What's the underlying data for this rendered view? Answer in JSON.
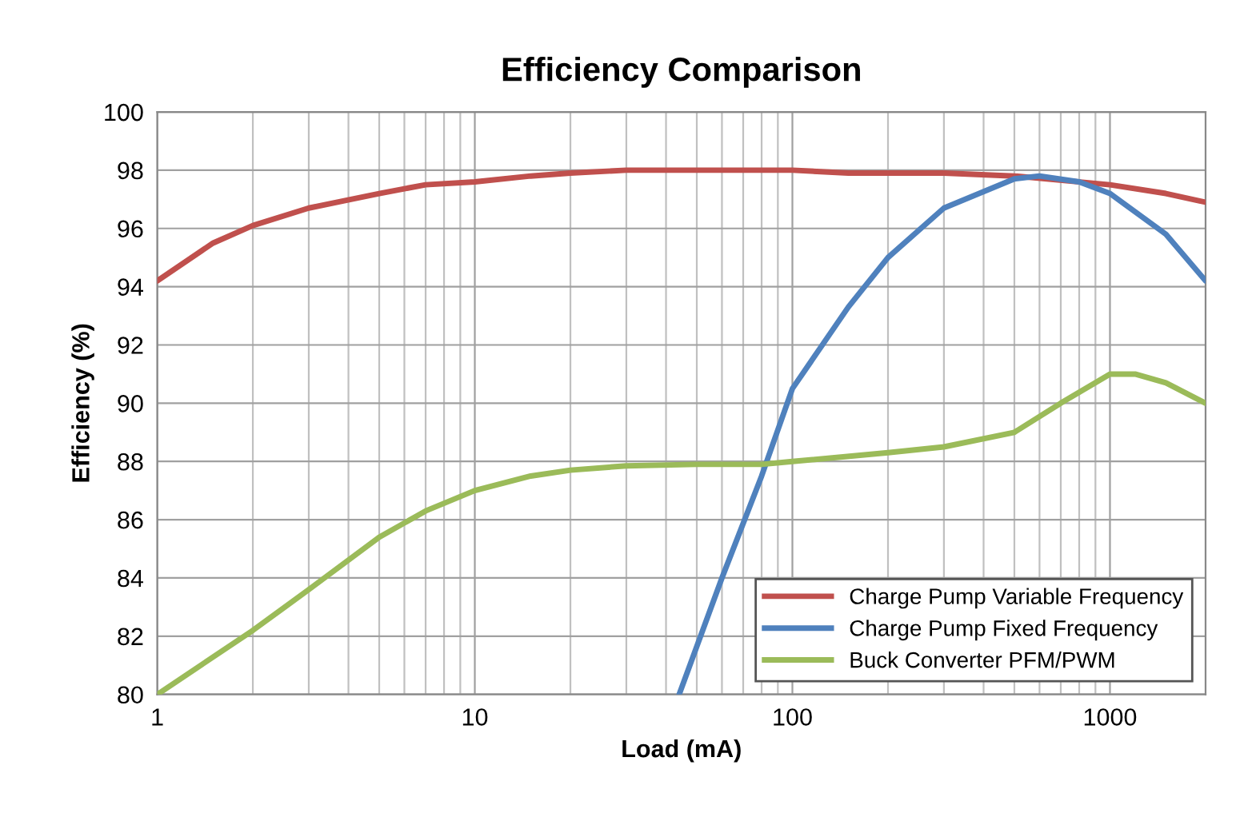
{
  "chart_data": {
    "type": "line",
    "title": "Efficiency Comparison",
    "xlabel": "Load (mA)",
    "ylabel": "Efficiency (%)",
    "log": "x",
    "xlim": [
      1,
      2000
    ],
    "xticks": [
      1,
      10,
      100,
      1000
    ],
    "ylim": [
      80,
      100
    ],
    "yticks": [
      80,
      82,
      84,
      86,
      88,
      90,
      92,
      94,
      96,
      98,
      100
    ],
    "grid": true,
    "legend": "bottom right",
    "marker": "none",
    "line_style": "solid",
    "series": [
      {
        "name": "Charge Pump Variable Frequency",
        "color": "#c0504d",
        "x": [
          1,
          1.5,
          2,
          3,
          5,
          7,
          10,
          15,
          20,
          30,
          50,
          100,
          150,
          300,
          500,
          1000,
          1500,
          2000
        ],
        "values": [
          94.2,
          95.5,
          96.1,
          96.7,
          97.2,
          97.5,
          97.6,
          97.8,
          97.9,
          98.0,
          98.0,
          98.0,
          97.9,
          97.9,
          97.8,
          97.5,
          97.2,
          96.9
        ]
      },
      {
        "name": "Charge Pump Fixed Frequency",
        "color": "#4f81bd",
        "x": [
          44,
          60,
          80,
          100,
          150,
          200,
          300,
          500,
          600,
          800,
          1000,
          1500,
          2000
        ],
        "values": [
          80,
          84,
          87.5,
          90.5,
          93.3,
          95,
          96.7,
          97.7,
          97.8,
          97.6,
          97.2,
          95.8,
          94.2
        ]
      },
      {
        "name": "Buck Converter PFM/PWM",
        "color": "#9bbb59",
        "x": [
          1,
          2,
          3,
          5,
          7,
          10,
          15,
          20,
          30,
          50,
          80,
          100,
          200,
          300,
          500,
          700,
          1000,
          1200,
          1500,
          2000
        ],
        "values": [
          80,
          82.2,
          83.6,
          85.4,
          86.3,
          87,
          87.5,
          87.7,
          87.85,
          87.9,
          87.9,
          88,
          88.3,
          88.5,
          89,
          90,
          91,
          91,
          90.7,
          90
        ]
      }
    ]
  }
}
